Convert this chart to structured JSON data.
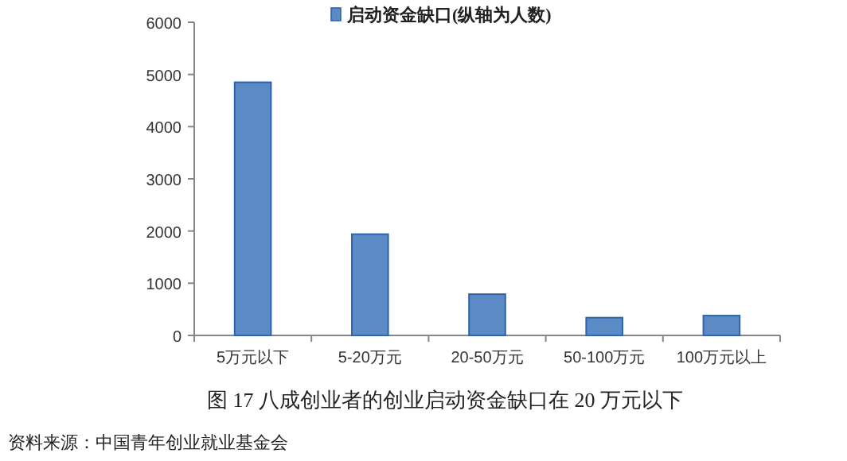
{
  "chart_data": {
    "type": "bar",
    "title": "图 17  八成创业者的创业启动资金缺口在 20 万元以下",
    "categories": [
      "5万元以下",
      "5-20万元",
      "20-50万元",
      "50-100万元",
      "100万元以上"
    ],
    "series": [
      {
        "name": "启动资金缺口(纵轴为人数)",
        "color": "#5b8ac4",
        "values": [
          4850,
          1940,
          790,
          340,
          380
        ]
      }
    ],
    "ylim": [
      0,
      6000
    ],
    "yticks": [
      0,
      1000,
      2000,
      3000,
      4000,
      5000,
      6000
    ],
    "legend": "top",
    "grid": false,
    "annotations": [
      "资料来源：中国青年创业就业基金会"
    ]
  }
}
